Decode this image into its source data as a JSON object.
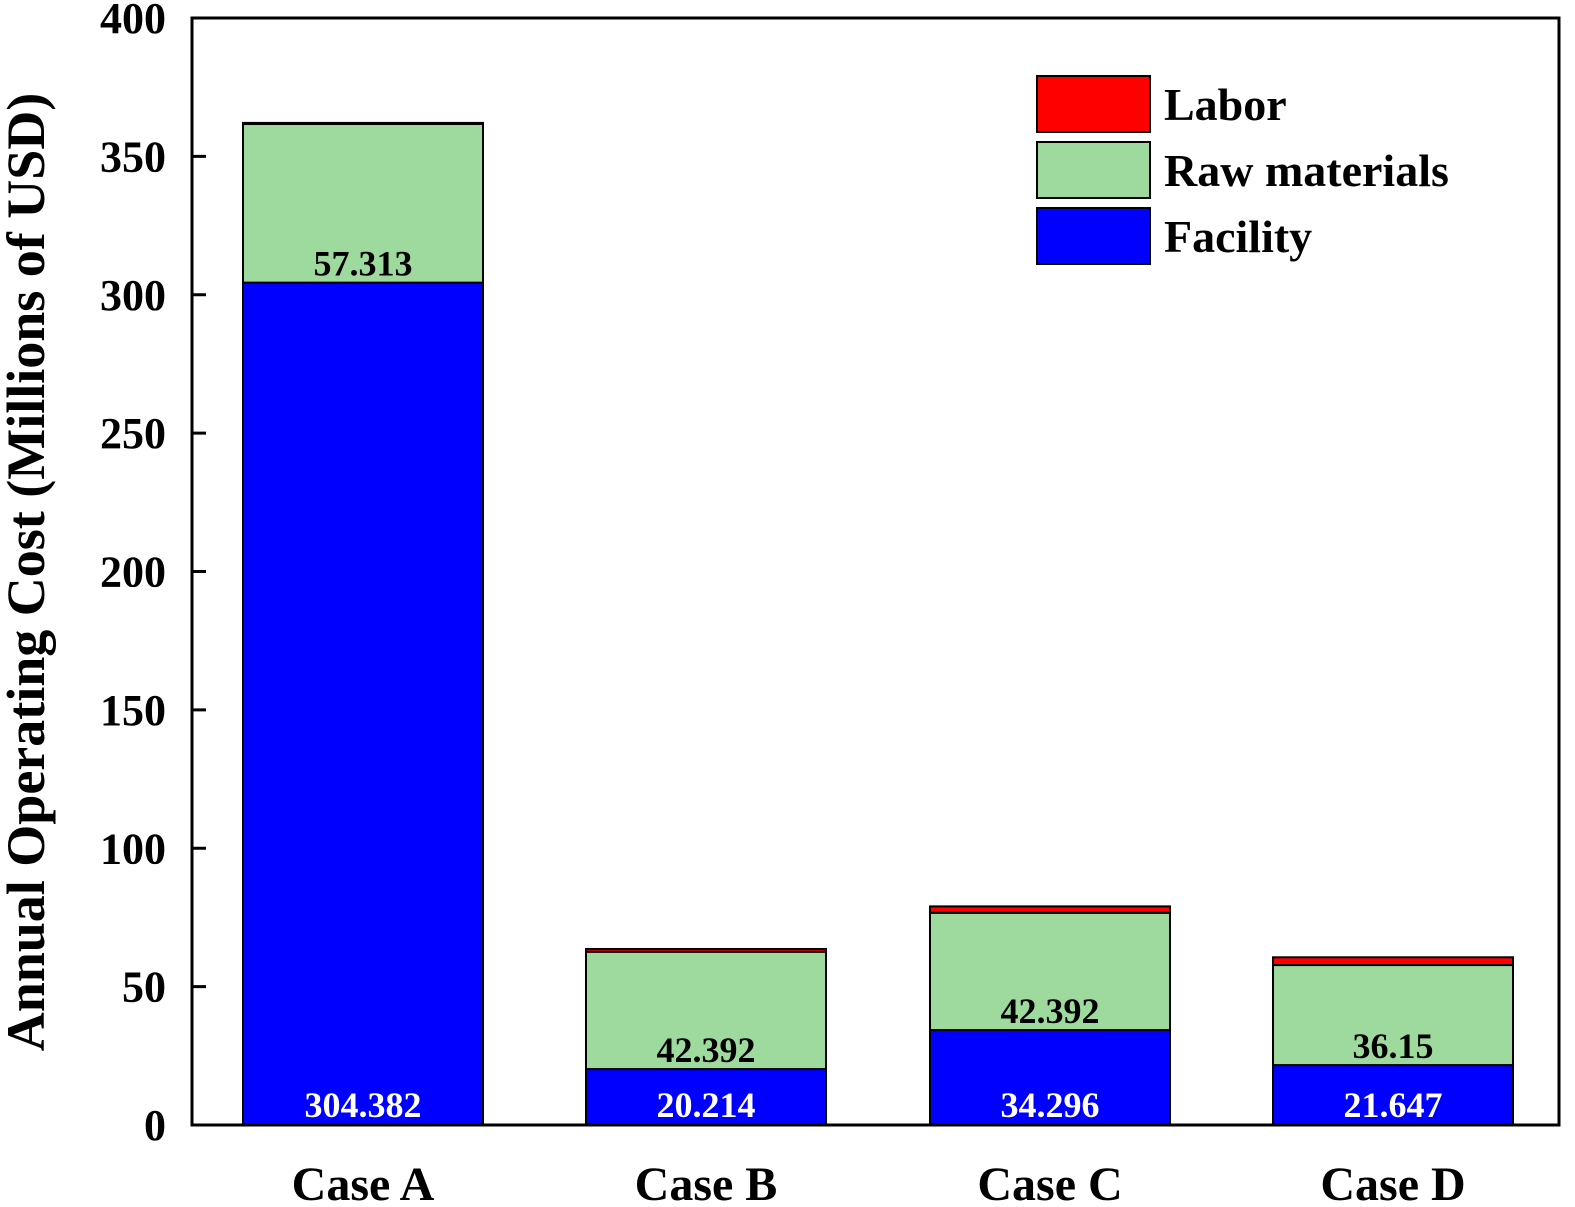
{
  "chart_data": {
    "type": "bar",
    "stacked": true,
    "title": "",
    "xlabel": "",
    "ylabel": "Annual Operating Cost (Millions of USD)",
    "ylim": [
      0,
      400
    ],
    "yticks": [
      "0",
      "50",
      "100",
      "150",
      "200",
      "250",
      "300",
      "350",
      "400"
    ],
    "categories": [
      "Case A",
      "Case B",
      "Case C",
      "Case D"
    ],
    "series": [
      {
        "name": "Facility",
        "color": "#0000ff",
        "values": [
          304.382,
          20.214,
          34.296,
          21.647
        ],
        "labels": [
          "304.382",
          "20.214",
          "34.296",
          "21.647"
        ],
        "label_color": "#ffffff"
      },
      {
        "name": "Raw materials",
        "color": "#9ed99e",
        "values": [
          57.313,
          42.392,
          42.392,
          36.15
        ],
        "labels": [
          "57.313",
          "42.392",
          "42.392",
          "36.15"
        ],
        "label_color": "#000000"
      },
      {
        "name": "Labor",
        "color": "#ff0000",
        "values": [
          0.4,
          1.0,
          2.3,
          2.8
        ],
        "labels": [],
        "label_color": "#000000"
      }
    ],
    "legend": {
      "position": "top-right",
      "order": [
        "Labor",
        "Raw materials",
        "Facility"
      ]
    },
    "grid": false
  }
}
